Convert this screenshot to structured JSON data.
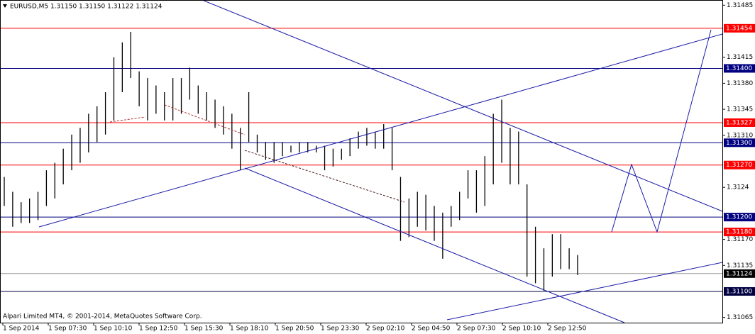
{
  "chart_data": {
    "type": "highlow",
    "title": "EURUSD,M5  1.31150 1.31150 1.31122 1.31124",
    "footer": "Alpari Limited MT4, © 2001-2014, MetaQuotes Software Corp.",
    "x_labels": [
      "1 Sep 2014",
      "1 Sep 07:30",
      "1 Sep 10:10",
      "1 Sep 12:50",
      "1 Sep 15:30",
      "1 Sep 18:10",
      "1 Sep 20:50",
      "1 Sep 23:30",
      "2 Sep 02:10",
      "2 Sep 04:50",
      "2 Sep 07:30",
      "2 Sep 10:10",
      "2 Sep 12:50"
    ],
    "ylim": [
      1.31058,
      1.31492
    ],
    "yticks": [
      1.31485,
      1.31415,
      {
        "value": 1.3138,
        "label": "1.31380"
      },
      1.31345,
      {
        "value": 1.3131,
        "label": "1.31310"
      },
      1.3124,
      {
        "value": 1.3117,
        "label": "1.31170"
      },
      1.31135,
      1.31065
    ],
    "levels": [
      {
        "value": 1.31454,
        "label": "1.31454",
        "color": "#ff0000"
      },
      {
        "value": 1.314,
        "label": "1.31400",
        "color": "#000080"
      },
      {
        "value": 1.31327,
        "label": "1.31327",
        "color": "#ff0000"
      },
      {
        "value": 1.313,
        "label": "1.31300",
        "color": "#000080"
      },
      {
        "value": 1.3127,
        "label": "1.31270",
        "color": "#ff0000"
      },
      {
        "value": 1.312,
        "label": "1.31200",
        "color": "#000080"
      },
      {
        "value": 1.3118,
        "label": "1.31180",
        "color": "#ff0000"
      },
      {
        "value": 1.311,
        "label": "1.31100",
        "color": "#000040"
      }
    ],
    "bid": {
      "value": 1.31124,
      "label": "1.31124",
      "color": "#000000"
    },
    "bar_color": "#000000",
    "high": [
      1.31254,
      1.31234,
      1.3122,
      1.31225,
      1.31234,
      1.31263,
      1.31273,
      1.31292,
      1.31311,
      1.3132,
      1.31339,
      1.31349,
      1.31368,
      1.31415,
      1.31435,
      1.31449,
      1.31396,
      1.31387,
      1.31377,
      1.31368,
      1.31387,
      1.31387,
      1.31401,
      1.31377,
      1.31368,
      1.31358,
      1.31349,
      1.31339,
      1.3132,
      1.31368,
      1.31311,
      1.31301,
      1.31301,
      1.31301,
      1.31296,
      1.31301,
      1.31301,
      1.31296,
      1.31296,
      1.31292,
      1.31292,
      1.31306,
      1.31315,
      1.3132,
      1.31315,
      1.31325,
      1.3132,
      1.31254,
      1.31225,
      1.31234,
      1.3123,
      1.31215,
      1.31206,
      1.31215,
      1.31234,
      1.31263,
      1.31263,
      1.31282,
      1.31339,
      1.31358,
      1.3132,
      1.31315,
      1.31244,
      1.31187,
      1.31158,
      1.31177,
      1.31177,
      1.31158,
      1.31149
    ],
    "low": [
      1.31215,
      1.31187,
      1.31192,
      1.31192,
      1.31196,
      1.31215,
      1.31225,
      1.31244,
      1.31263,
      1.31273,
      1.31287,
      1.31301,
      1.31311,
      1.3133,
      1.31368,
      1.31387,
      1.31349,
      1.3133,
      1.31339,
      1.3133,
      1.3133,
      1.31339,
      1.31358,
      1.31339,
      1.3133,
      1.3132,
      1.31311,
      1.31292,
      1.31263,
      1.31301,
      1.31287,
      1.31277,
      1.31273,
      1.31282,
      1.31287,
      1.31287,
      1.31287,
      1.31287,
      1.31263,
      1.31268,
      1.31277,
      1.31282,
      1.31292,
      1.31296,
      1.31292,
      1.31292,
      1.31263,
      1.31168,
      1.31173,
      1.31187,
      1.31182,
      1.31168,
      1.31144,
      1.31187,
      1.31196,
      1.31225,
      1.31206,
      1.31215,
      1.31244,
      1.31273,
      1.31244,
      1.31244,
      1.3112,
      1.31111,
      1.31101,
      1.3112,
      1.3113,
      1.3113,
      1.31122
    ]
  }
}
